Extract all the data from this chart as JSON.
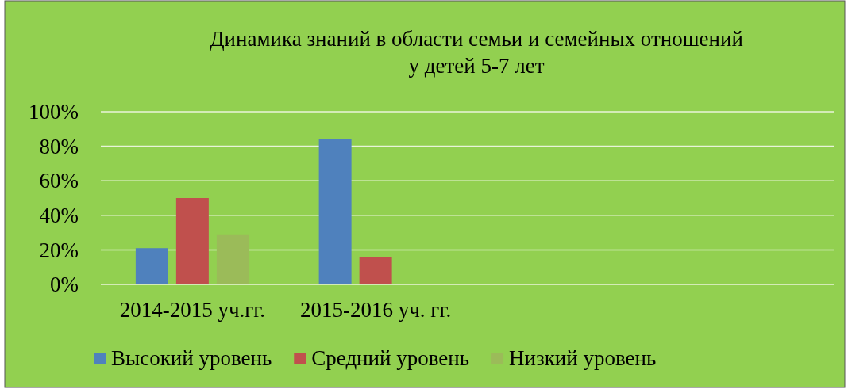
{
  "chart_data": {
    "type": "bar",
    "title": "Динамика знаний в области  семьи и семейных отношений\nу детей 5-7 лет",
    "categories": [
      "2014-2015 уч.гг.",
      "2015-2016 уч. гг.",
      null,
      null
    ],
    "series": [
      {
        "name": "Высокий уровень",
        "color": "#4f81bd",
        "values": [
          21,
          84,
          null,
          null
        ]
      },
      {
        "name": "Средний уровень",
        "color": "#c0504d",
        "values": [
          50,
          16,
          null,
          null
        ]
      },
      {
        "name": "Низкий уровень",
        "color": "#9bbb59",
        "values": [
          29,
          0,
          null,
          null
        ]
      }
    ],
    "ylim": [
      0,
      100
    ],
    "yticks": [
      {
        "value": 0,
        "label": "0%"
      },
      {
        "value": 20,
        "label": "20%"
      },
      {
        "value": 40,
        "label": "40%"
      },
      {
        "value": 60,
        "label": "60%"
      },
      {
        "value": 80,
        "label": "80%"
      },
      {
        "value": 100,
        "label": "100%"
      }
    ],
    "grid": "y",
    "legend": "bottom"
  }
}
